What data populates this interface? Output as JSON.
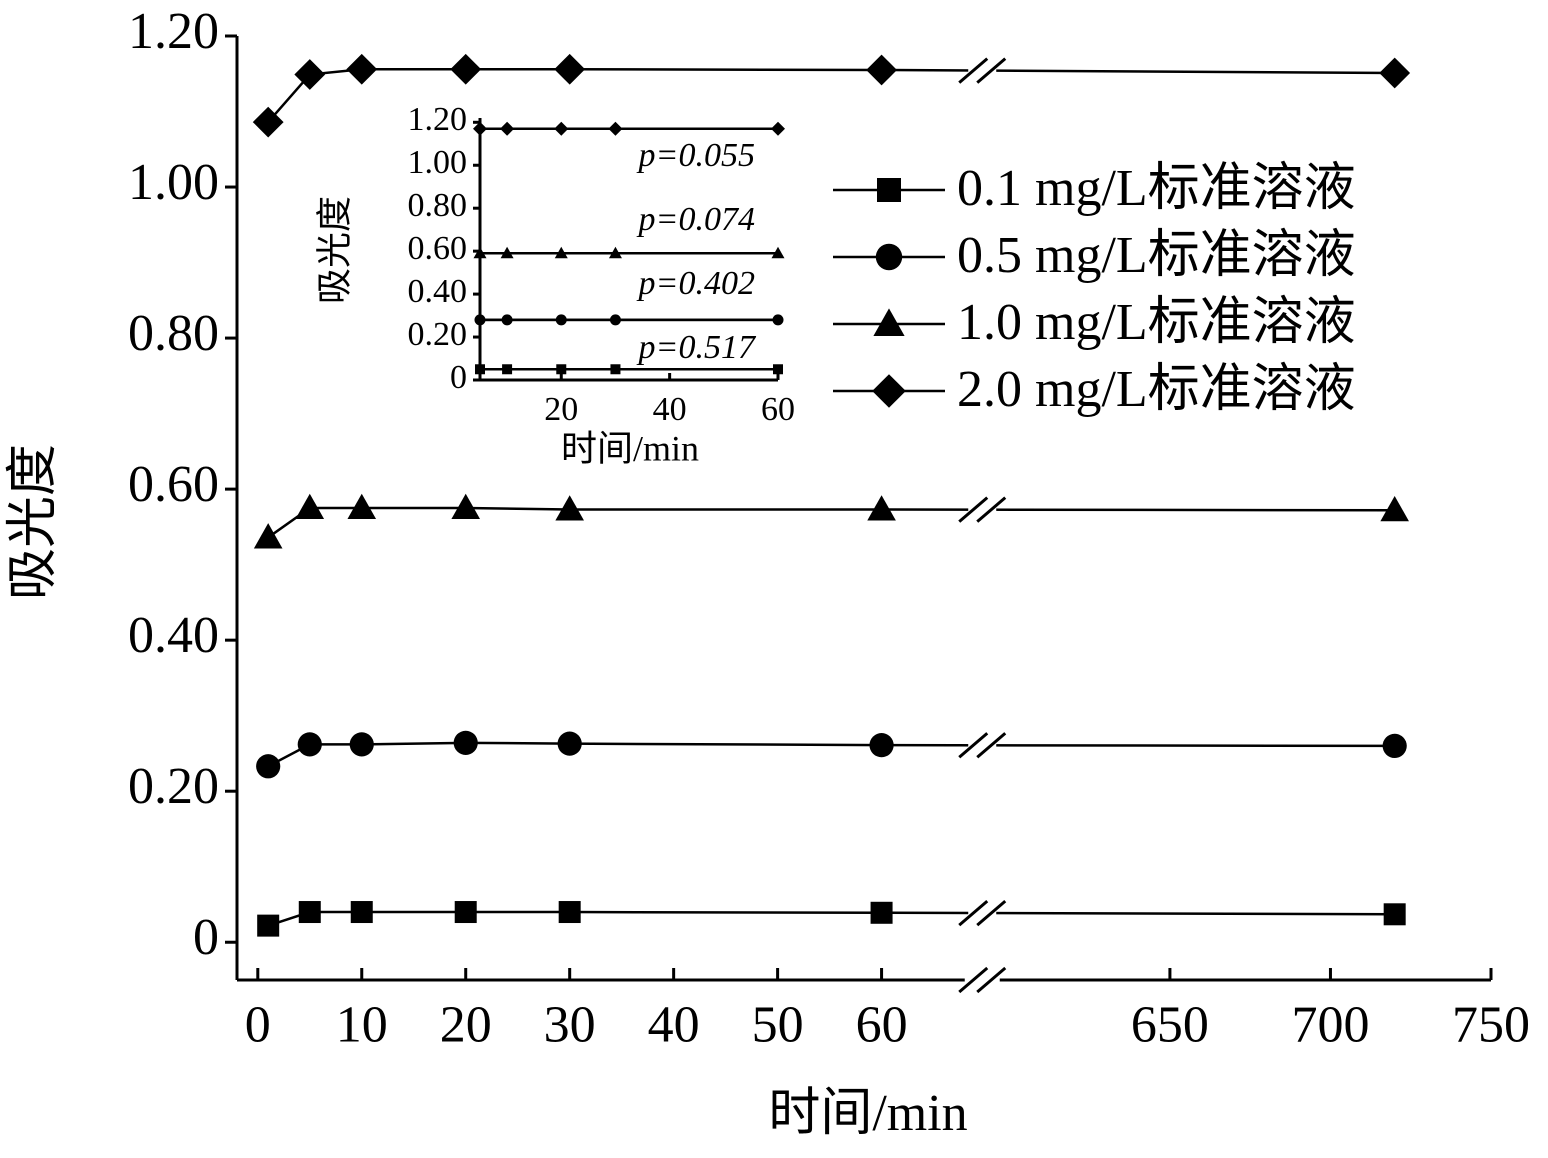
{
  "chart_data": [
    {
      "type": "line",
      "x_label": "时间/min",
      "y_label": "吸光度",
      "x": [
        1,
        5,
        10,
        20,
        30,
        60,
        720
      ],
      "xlim": [
        -2,
        750
      ],
      "xbreak": [
        68,
        597
      ],
      "xticks": [
        0,
        10,
        20,
        30,
        40,
        50,
        60,
        650,
        700,
        750
      ],
      "ylim": [
        -0.05,
        1.2
      ],
      "yticks": [
        0,
        {
          "value": 0.2,
          "label": "0.20"
        },
        {
          "value": 0.4,
          "label": "0.40"
        },
        {
          "value": 0.6,
          "label": "0.60"
        },
        {
          "value": 0.8,
          "label": "0.80"
        },
        {
          "value": 1.0,
          "label": "1.00"
        },
        {
          "value": 1.2,
          "label": "1.20"
        }
      ],
      "legend": "upper right",
      "series": [
        {
          "name": "0.1 mg/L标准溶液",
          "color": "#000000",
          "marker": "square",
          "values": [
            0.022,
            0.04,
            0.04,
            0.04,
            0.04,
            0.039,
            0.037
          ]
        },
        {
          "name": "0.5 mg/L标准溶液",
          "color": "#000000",
          "marker": "circle",
          "values": [
            0.233,
            0.262,
            0.262,
            0.264,
            0.263,
            0.261,
            0.26
          ]
        },
        {
          "name": "1.0 mg/L标准溶液",
          "color": "#000000",
          "marker": "triangle",
          "values": [
            0.536,
            0.575,
            0.575,
            0.575,
            0.573,
            0.573,
            0.572
          ]
        },
        {
          "name": "2.0 mg/L标准溶液",
          "color": "#000000",
          "marker": "diamond",
          "values": [
            1.086,
            1.149,
            1.156,
            1.156,
            1.156,
            1.155,
            1.151
          ]
        }
      ]
    },
    {
      "type": "line",
      "x_label": "时间/min",
      "y_label": "吸光度",
      "x": [
        5,
        10,
        20,
        30,
        60
      ],
      "xlim": [
        5,
        60
      ],
      "xticks": [
        20,
        40,
        60
      ],
      "ylim": [
        0,
        1.22
      ],
      "yticks": [
        0,
        {
          "value": 0.2,
          "label": "0.20"
        },
        {
          "value": 0.4,
          "label": "0.40"
        },
        {
          "value": 0.6,
          "label": "0.60"
        },
        {
          "value": 0.8,
          "label": "0.80"
        },
        {
          "value": 1.0,
          "label": "1.00"
        },
        {
          "value": 1.2,
          "label": "1.20"
        }
      ],
      "annotations": [
        "p=0.055",
        "p=0.074",
        "p=0.402",
        "p=0.517"
      ],
      "series": [
        {
          "color": "#000000",
          "marker": "square",
          "values": [
            0.05,
            0.05,
            0.05,
            0.05,
            0.05
          ]
        },
        {
          "color": "#000000",
          "marker": "circle",
          "values": [
            0.28,
            0.28,
            0.28,
            0.28,
            0.28
          ]
        },
        {
          "color": "#000000",
          "marker": "triangle",
          "values": [
            0.59,
            0.59,
            0.59,
            0.59,
            0.59
          ]
        },
        {
          "color": "#000000",
          "marker": "diamond",
          "values": [
            1.17,
            1.17,
            1.17,
            1.17,
            1.17
          ]
        }
      ]
    }
  ]
}
